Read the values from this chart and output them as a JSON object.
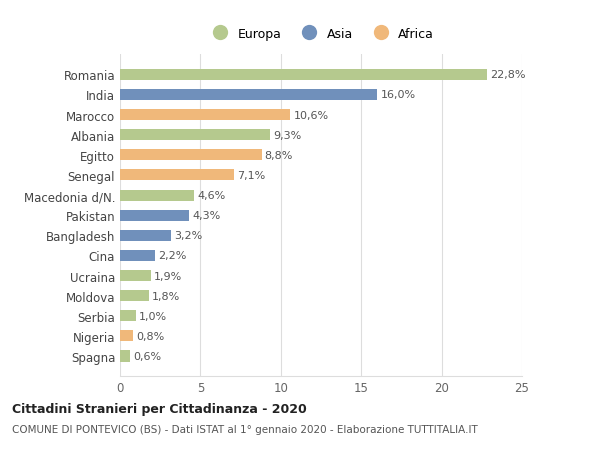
{
  "categories": [
    "Romania",
    "India",
    "Marocco",
    "Albania",
    "Egitto",
    "Senegal",
    "Macedonia d/N.",
    "Pakistan",
    "Bangladesh",
    "Cina",
    "Ucraina",
    "Moldova",
    "Serbia",
    "Nigeria",
    "Spagna"
  ],
  "values": [
    22.8,
    16.0,
    10.6,
    9.3,
    8.8,
    7.1,
    4.6,
    4.3,
    3.2,
    2.2,
    1.9,
    1.8,
    1.0,
    0.8,
    0.6
  ],
  "labels": [
    "22,8%",
    "16,0%",
    "10,6%",
    "9,3%",
    "8,8%",
    "7,1%",
    "4,6%",
    "4,3%",
    "3,2%",
    "2,2%",
    "1,9%",
    "1,8%",
    "1,0%",
    "0,8%",
    "0,6%"
  ],
  "continents": [
    "Europa",
    "Asia",
    "Africa",
    "Europa",
    "Africa",
    "Africa",
    "Europa",
    "Asia",
    "Asia",
    "Asia",
    "Europa",
    "Europa",
    "Europa",
    "Africa",
    "Europa"
  ],
  "colors": {
    "Europa": "#b5c98e",
    "Asia": "#7090bb",
    "Africa": "#f0b87a"
  },
  "legend_labels": [
    "Europa",
    "Asia",
    "Africa"
  ],
  "title1": "Cittadini Stranieri per Cittadinanza - 2020",
  "title2": "COMUNE DI PONTEVICO (BS) - Dati ISTAT al 1° gennaio 2020 - Elaborazione TUTTITALIA.IT",
  "xlim": [
    0,
    25
  ],
  "xticks": [
    0,
    5,
    10,
    15,
    20,
    25
  ],
  "background_color": "#ffffff",
  "grid_color": "#dddddd"
}
